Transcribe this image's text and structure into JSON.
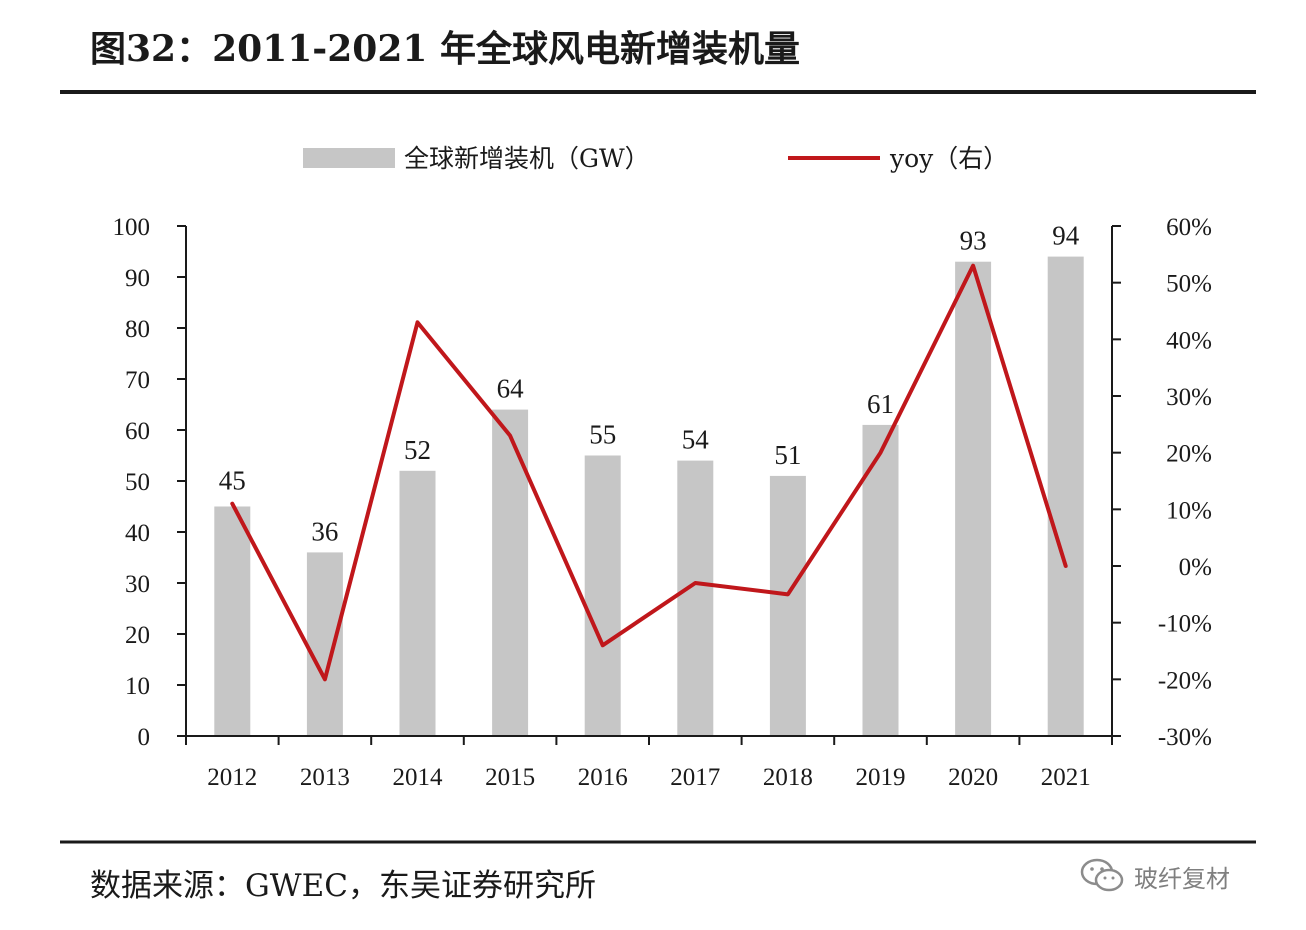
{
  "figure": {
    "title": "图32：2011-2021 年全球风电新增装机量",
    "source": "数据来源：GWEC，东吴证券研究所",
    "watermark": "玻纤复材",
    "watermark_icon": "wechat-icon"
  },
  "chart_data": {
    "type": "bar+line",
    "categories": [
      "2012",
      "2013",
      "2014",
      "2015",
      "2016",
      "2017",
      "2018",
      "2019",
      "2020",
      "2021"
    ],
    "series": [
      {
        "name": "全球新增装机（GW）",
        "type": "bar",
        "axis": "left",
        "color": "#c6c6c6",
        "values": [
          45,
          36,
          52,
          64,
          55,
          54,
          51,
          61,
          93,
          94
        ],
        "labels": [
          "45",
          "36",
          "52",
          "64",
          "55",
          "54",
          "51",
          "61",
          "93",
          "94"
        ]
      },
      {
        "name": "yoy（右）",
        "type": "line",
        "axis": "right",
        "color": "#c0171b",
        "values": [
          11,
          -20,
          43,
          23,
          -14,
          -3,
          -5,
          20,
          53,
          0
        ]
      }
    ],
    "y_left": {
      "range": [
        0,
        100
      ],
      "ticks": [
        0,
        10,
        20,
        30,
        40,
        50,
        60,
        70,
        80,
        90,
        100
      ],
      "tick_labels": [
        "0",
        "10",
        "20",
        "30",
        "40",
        "50",
        "60",
        "70",
        "80",
        "90",
        "100"
      ]
    },
    "y_right": {
      "range": [
        -30,
        60
      ],
      "ticks": [
        -30,
        -20,
        -10,
        0,
        10,
        20,
        30,
        40,
        50,
        60
      ],
      "tick_labels": [
        "-30%",
        "-20%",
        "-10%",
        "0%",
        "10%",
        "20%",
        "30%",
        "40%",
        "50%",
        "60%"
      ]
    },
    "grid": false,
    "legend_position": "top-center"
  }
}
